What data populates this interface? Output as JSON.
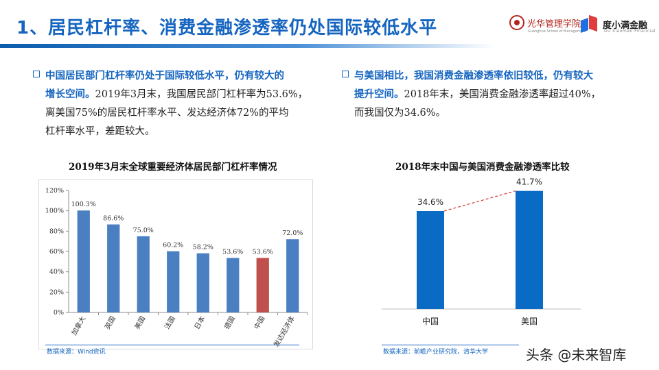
{
  "header": {
    "title": "1、居民杠杆率、消费金融渗透率仍处国际较低水平",
    "logo_pku": "光华管理学院",
    "logo_pku_sub": "Guanghua School of Management",
    "logo_dxm": "度小满金融",
    "logo_dxm_sub": "Du Xiaoman Financial"
  },
  "left_bullet": {
    "highlight_line1": "中国居民部门杠杆率仍处于国际较低水平，仍有较大的",
    "highlight_line2": "增长空间。",
    "body_line2": "2019年3月末，我国居民部门杠杆率为53.6%，",
    "body_line3": "离美国75%的居民杠杆率水平、发达经济体72%的平均",
    "body_line4": "杠杆率水平，差距较大。"
  },
  "right_bullet": {
    "highlight_line1": "与美国相比，我国消费金融渗透率依旧较低，仍有较大",
    "highlight_line2": "提升空间。",
    "body_line2": "2018年末，美国消费金融渗透率超过40%，",
    "body_line3": "而我国仅为34.6%。"
  },
  "chart_data": [
    {
      "type": "bar",
      "title": "2019年3月末全球重要经济体居民部门杠杆率情况",
      "categories": [
        "加拿大",
        "英国",
        "美国",
        "法国",
        "日本",
        "德国",
        "中国",
        "发达经济体"
      ],
      "values": [
        100.3,
        86.6,
        75.0,
        60.2,
        58.2,
        53.6,
        53.6,
        72.0
      ],
      "data_labels": [
        "100.3%",
        "86.6%",
        "75.0%",
        "60.2%",
        "58.2%",
        "53.6%",
        "53.6%",
        "72.0%"
      ],
      "yticks": [
        "0%",
        "20%",
        "40%",
        "60%",
        "80%",
        "100%",
        "120%"
      ],
      "ylim": [
        0,
        120
      ],
      "colors": {
        "default": "#4a7fc1",
        "highlight": "#c0504d"
      },
      "highlight_index": 6,
      "xlabel": "",
      "ylabel": "",
      "source": "数据来源：Wind资讯"
    },
    {
      "type": "bar",
      "title": "2018年末中国与美国消费金融渗透率比较",
      "categories": [
        "中国",
        "美国"
      ],
      "values": [
        34.6,
        41.7
      ],
      "data_labels": [
        "34.6%",
        "41.7%"
      ],
      "ylim": [
        0,
        45
      ],
      "colors": {
        "bar": "#0a6bc4",
        "connector": "#d0352f"
      },
      "xlabel": "",
      "ylabel": "",
      "source": "数据来源：前瞻产业研究院，清华大学"
    }
  ],
  "watermark": "头条 @未来智库"
}
